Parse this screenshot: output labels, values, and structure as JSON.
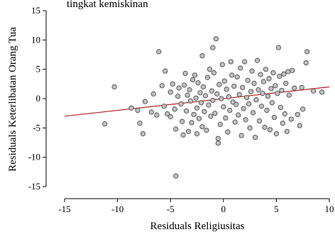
{
  "chart_data": {
    "type": "scatter",
    "title": "tingkat kemiskinan",
    "xlabel": "Residuals Religiusitas",
    "ylabel": "Residuals Keterlibatan Orang Tua",
    "xlim": [
      -15,
      10
    ],
    "ylim": [
      -15,
      15
    ],
    "xticks": [
      -15,
      -10,
      -5,
      0,
      5,
      10
    ],
    "xtick_labels": [
      "-15",
      "-10",
      "-5",
      "0",
      "5",
      "10"
    ],
    "yticks": [
      -15,
      -10,
      -5,
      0,
      5,
      10,
      15
    ],
    "ytick_labels": [
      "-15",
      "-10",
      "-5",
      "0",
      "5",
      "10",
      "15"
    ],
    "grid": false,
    "legend": "none",
    "colors": {
      "point_fill": "#bfbfbf",
      "point_stroke": "#404040",
      "fit_line": "#b22222",
      "axis": "#000000"
    },
    "fit_line": {
      "x": [
        -15,
        10
      ],
      "y": [
        -3.0,
        2.0
      ]
    },
    "points": [
      {
        "x": -11.2,
        "y": -4.3
      },
      {
        "x": -10.3,
        "y": 2.0
      },
      {
        "x": -8.7,
        "y": -1.6
      },
      {
        "x": -8.1,
        "y": -2.0
      },
      {
        "x": -7.9,
        "y": -4.2
      },
      {
        "x": -7.6,
        "y": -6.0
      },
      {
        "x": -7.4,
        "y": -0.5
      },
      {
        "x": -6.8,
        "y": -2.3
      },
      {
        "x": -6.6,
        "y": 0.8
      },
      {
        "x": -6.3,
        "y": -2.8
      },
      {
        "x": -6.1,
        "y": 8.0
      },
      {
        "x": -5.8,
        "y": 2.2
      },
      {
        "x": -5.6,
        "y": -1.3
      },
      {
        "x": -5.5,
        "y": 4.7
      },
      {
        "x": -5.3,
        "y": -2.6
      },
      {
        "x": -5.0,
        "y": -3.1
      },
      {
        "x": -5.0,
        "y": 1.1
      },
      {
        "x": -4.8,
        "y": 2.5
      },
      {
        "x": -4.6,
        "y": -1.8
      },
      {
        "x": -4.5,
        "y": -5.2
      },
      {
        "x": -4.5,
        "y": -13.2
      },
      {
        "x": -4.3,
        "y": 0.4
      },
      {
        "x": -4.2,
        "y": 1.8
      },
      {
        "x": -4.0,
        "y": -0.9
      },
      {
        "x": -3.9,
        "y": -3.9
      },
      {
        "x": -3.8,
        "y": -6.2
      },
      {
        "x": -3.7,
        "y": 2.3
      },
      {
        "x": -3.6,
        "y": 4.3
      },
      {
        "x": -3.5,
        "y": -2.1
      },
      {
        "x": -3.4,
        "y": 0.6
      },
      {
        "x": -3.3,
        "y": -5.6
      },
      {
        "x": -3.2,
        "y": 1.5
      },
      {
        "x": -3.1,
        "y": -0.4
      },
      {
        "x": -3.0,
        "y": -4.1
      },
      {
        "x": -2.9,
        "y": 3.2
      },
      {
        "x": -2.8,
        "y": -2.7
      },
      {
        "x": -2.7,
        "y": 4.0
      },
      {
        "x": -2.6,
        "y": 0.1
      },
      {
        "x": -2.5,
        "y": -1.6
      },
      {
        "x": -2.5,
        "y": -6.0
      },
      {
        "x": -2.4,
        "y": 2.7
      },
      {
        "x": -2.3,
        "y": -3.4
      },
      {
        "x": -2.2,
        "y": 1.0
      },
      {
        "x": -2.1,
        "y": -0.7
      },
      {
        "x": -2.0,
        "y": 7.3
      },
      {
        "x": -2.0,
        "y": -4.8
      },
      {
        "x": -1.9,
        "y": 2.0
      },
      {
        "x": -1.8,
        "y": -2.2
      },
      {
        "x": -1.7,
        "y": 0.5
      },
      {
        "x": -1.6,
        "y": -5.4
      },
      {
        "x": -1.5,
        "y": 3.6
      },
      {
        "x": -1.4,
        "y": -1.1
      },
      {
        "x": -1.3,
        "y": 5.0
      },
      {
        "x": -1.2,
        "y": -3.0
      },
      {
        "x": -1.1,
        "y": 1.3
      },
      {
        "x": -1.0,
        "y": 8.7
      },
      {
        "x": -1.0,
        "y": -0.3
      },
      {
        "x": -0.9,
        "y": 4.4
      },
      {
        "x": -0.8,
        "y": -2.5
      },
      {
        "x": -0.7,
        "y": 10.2
      },
      {
        "x": -0.6,
        "y": 0.8
      },
      {
        "x": -0.5,
        "y": -6.8
      },
      {
        "x": -0.5,
        "y": -7.6
      },
      {
        "x": -0.4,
        "y": 2.4
      },
      {
        "x": -0.3,
        "y": -4.4
      },
      {
        "x": -0.2,
        "y": 0.0
      },
      {
        "x": -0.1,
        "y": 5.8
      },
      {
        "x": 0.0,
        "y": -1.4
      },
      {
        "x": 0.1,
        "y": 3.0
      },
      {
        "x": 0.2,
        "y": -3.3
      },
      {
        "x": 0.3,
        "y": 1.6
      },
      {
        "x": 0.4,
        "y": -5.7
      },
      {
        "x": 0.5,
        "y": 0.3
      },
      {
        "x": 0.6,
        "y": -2.0
      },
      {
        "x": 0.7,
        "y": 6.3
      },
      {
        "x": 0.8,
        "y": 4.0
      },
      {
        "x": 0.9,
        "y": -0.6
      },
      {
        "x": 1.0,
        "y": 2.1
      },
      {
        "x": 1.1,
        "y": -4.0
      },
      {
        "x": 1.2,
        "y": -1.0
      },
      {
        "x": 1.3,
        "y": 3.7
      },
      {
        "x": 1.4,
        "y": -2.8
      },
      {
        "x": 1.5,
        "y": 0.7
      },
      {
        "x": 1.6,
        "y": 5.2
      },
      {
        "x": 1.7,
        "y": -6.3
      },
      {
        "x": 1.8,
        "y": 1.9
      },
      {
        "x": 1.9,
        "y": -1.7
      },
      {
        "x": 2.0,
        "y": 6.3
      },
      {
        "x": 2.1,
        "y": -3.6
      },
      {
        "x": 2.2,
        "y": 0.2
      },
      {
        "x": 2.3,
        "y": 3.1
      },
      {
        "x": 2.4,
        "y": -0.9
      },
      {
        "x": 2.5,
        "y": -5.0
      },
      {
        "x": 2.6,
        "y": 1.2
      },
      {
        "x": 2.7,
        "y": 4.7
      },
      {
        "x": 2.8,
        "y": -2.4
      },
      {
        "x": 2.9,
        "y": 2.6
      },
      {
        "x": 3.0,
        "y": -6.6
      },
      {
        "x": 3.1,
        "y": -0.2
      },
      {
        "x": 3.2,
        "y": 6.5
      },
      {
        "x": 3.3,
        "y": 1.5
      },
      {
        "x": 3.4,
        "y": -3.8
      },
      {
        "x": 3.5,
        "y": 4.1
      },
      {
        "x": 3.6,
        "y": -1.3
      },
      {
        "x": 3.7,
        "y": 0.9
      },
      {
        "x": 3.8,
        "y": 2.9
      },
      {
        "x": 3.9,
        "y": -4.9
      },
      {
        "x": 4.0,
        "y": 5.0
      },
      {
        "x": 4.1,
        "y": -2.0
      },
      {
        "x": 4.2,
        "y": 0.4
      },
      {
        "x": 4.3,
        "y": 3.4
      },
      {
        "x": 4.4,
        "y": -5.3
      },
      {
        "x": 4.5,
        "y": 1.7
      },
      {
        "x": 4.6,
        "y": -0.7
      },
      {
        "x": 4.7,
        "y": 4.4
      },
      {
        "x": 4.8,
        "y": -3.2
      },
      {
        "x": 4.9,
        "y": 2.2
      },
      {
        "x": 5.0,
        "y": -6.0
      },
      {
        "x": 5.1,
        "y": 0.9
      },
      {
        "x": 5.2,
        "y": 8.7
      },
      {
        "x": 5.3,
        "y": 3.8
      },
      {
        "x": 5.4,
        "y": -1.5
      },
      {
        "x": 5.5,
        "y": 1.4
      },
      {
        "x": 5.6,
        "y": -4.2
      },
      {
        "x": 5.7,
        "y": 4.2
      },
      {
        "x": 5.8,
        "y": -2.6
      },
      {
        "x": 5.9,
        "y": 2.6
      },
      {
        "x": 6.0,
        "y": -5.6
      },
      {
        "x": 6.1,
        "y": 4.6
      },
      {
        "x": 6.2,
        "y": 0.6
      },
      {
        "x": 6.4,
        "y": -3.5
      },
      {
        "x": 6.5,
        "y": 4.8
      },
      {
        "x": 6.7,
        "y": 1.8
      },
      {
        "x": 7.0,
        "y": -2.7
      },
      {
        "x": 7.2,
        "y": -4.6
      },
      {
        "x": 7.4,
        "y": 1.9
      },
      {
        "x": 7.5,
        "y": -1.8
      },
      {
        "x": 7.8,
        "y": 6.1
      },
      {
        "x": 7.9,
        "y": 8.0
      },
      {
        "x": 8.5,
        "y": 1.3
      },
      {
        "x": 9.3,
        "y": 1.1
      }
    ]
  }
}
